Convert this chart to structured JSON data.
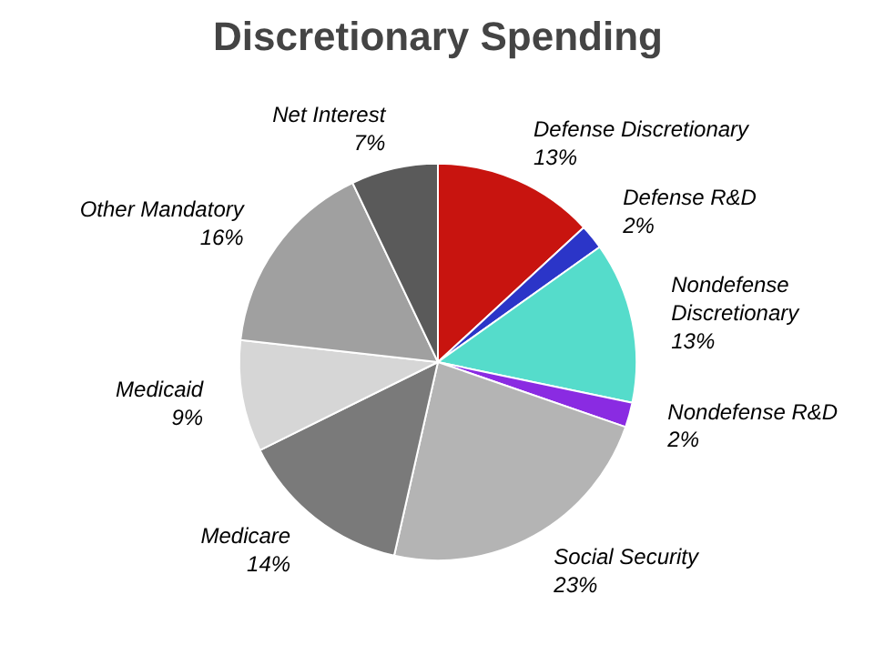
{
  "chart_data": {
    "type": "pie",
    "title": "Discretionary Spending",
    "categories": [
      "Defense Discretionary",
      "Defense R&D",
      "Nondefense Discretionary",
      "Nondefense R&D",
      "Social Security",
      "Medicare",
      "Medicaid",
      "Other Mandatory",
      "Net Interest"
    ],
    "values": [
      13,
      2,
      13,
      2,
      23,
      14,
      9,
      16,
      7
    ],
    "value_labels": [
      "13%",
      "2%",
      "13%",
      "2%",
      "23%",
      "14%",
      "9%",
      "16%",
      "7%"
    ],
    "colors": [
      "#c8140f",
      "#2b35c8",
      "#55dccb",
      "#8a2be2",
      "#b4b4b4",
      "#7a7a7a",
      "#d6d6d6",
      "#a0a0a0",
      "#5a5a5a"
    ]
  }
}
